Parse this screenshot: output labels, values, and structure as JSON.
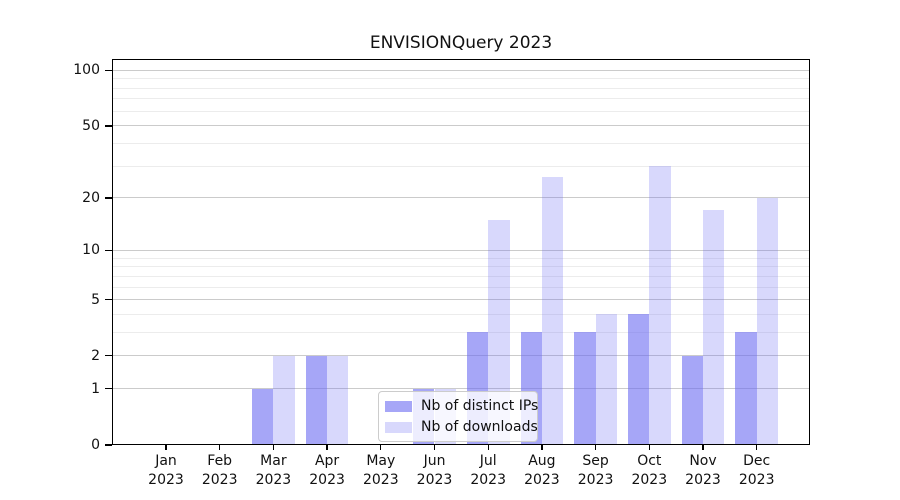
{
  "figure": {
    "background": "#ffffff"
  },
  "chart_data": {
    "type": "bar",
    "title": "ENVISIONQuery 2023",
    "months": [
      "Jan",
      "Feb",
      "Mar",
      "Apr",
      "May",
      "Jun",
      "Jul",
      "Aug",
      "Sep",
      "Oct",
      "Nov",
      "Dec"
    ],
    "year_label": "2023",
    "series": [
      {
        "name": "Nb of distinct IPs",
        "color": "rgba(106, 106, 242, 0.60)",
        "values": [
          0,
          0,
          1,
          2,
          0,
          1,
          3,
          3,
          3,
          4,
          2,
          3
        ]
      },
      {
        "name": "Nb of downloads",
        "color": "rgba(106, 106, 242, 0.26)",
        "values": [
          0,
          0,
          2,
          2,
          0,
          1,
          15,
          26,
          4,
          30,
          17,
          20
        ]
      }
    ],
    "yscale": "log1p",
    "y_axis": {
      "major_ticks": [
        0,
        1,
        2,
        5,
        10,
        20,
        50,
        100
      ],
      "minor_gridlines": [
        3,
        4,
        6,
        7,
        8,
        9,
        30,
        40,
        60,
        70,
        80,
        90
      ],
      "top_value": 116
    },
    "xlabel": "",
    "ylabel": "",
    "grid": "on",
    "legend_position": "lower-center",
    "colors": {
      "major_grid": "#cbcbcb",
      "minor_grid": "#ececec",
      "spine": "#000000"
    }
  }
}
